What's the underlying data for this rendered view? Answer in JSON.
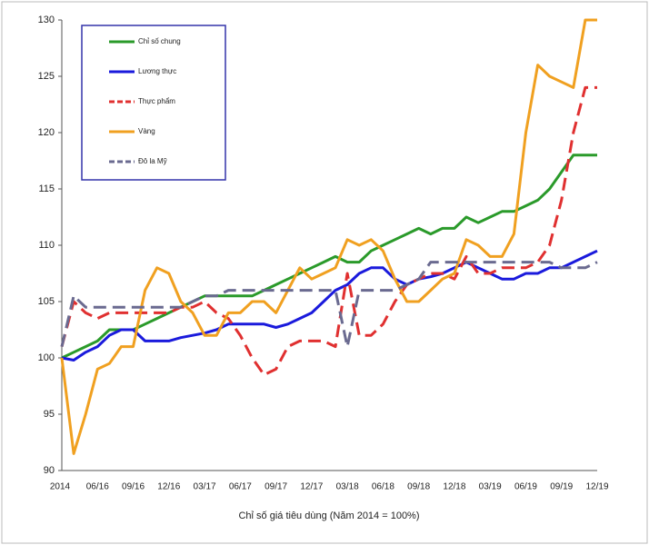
{
  "chart_data": {
    "type": "line",
    "x_label": "Chỉ số giá tiêu dùng (Năm 2014 = 100%)",
    "categories": [
      "2014",
      null,
      null,
      "06/16",
      null,
      null,
      "09/16",
      null,
      null,
      "12/16",
      null,
      null,
      "03/17",
      null,
      null,
      "06/17",
      null,
      null,
      "09/17",
      null,
      null,
      "12/17",
      null,
      null,
      "03/18",
      null,
      null,
      "06/18",
      null,
      null,
      "09/18",
      null,
      null,
      "12/18",
      null,
      null,
      "03/19",
      null,
      null,
      "06/19",
      null,
      null,
      "09/19",
      null,
      null,
      "12/19"
    ],
    "ylim": [
      90,
      130
    ],
    "yticks": [
      90,
      95,
      100,
      105,
      110,
      115,
      120,
      125,
      130
    ],
    "series": [
      {
        "name": "Chỉ số chung",
        "color": "#2a9a2a",
        "dashed": false,
        "values": [
          100,
          100.5,
          101,
          101.5,
          102.5,
          102.5,
          102.5,
          103,
          103.5,
          104,
          104.5,
          105,
          105.5,
          105.5,
          105.5,
          105.5,
          105.5,
          106,
          106.5,
          107,
          107.5,
          108,
          108.5,
          109,
          108.5,
          108.5,
          109.5,
          110,
          110.5,
          111,
          111.5,
          111,
          111.5,
          111.5,
          112.5,
          112,
          112.5,
          113,
          113,
          113.5,
          114,
          115,
          116.5,
          118,
          118,
          118
        ]
      },
      {
        "name": "Lương thực",
        "color": "#1a1adc",
        "dashed": false,
        "values": [
          100,
          99.8,
          100.5,
          101,
          102,
          102.5,
          102.5,
          101.5,
          101.5,
          101.5,
          101.8,
          102,
          102.2,
          102.5,
          103,
          103,
          103,
          103,
          102.7,
          103,
          103.5,
          104,
          105,
          106,
          106.5,
          107.5,
          108,
          108,
          107,
          106.5,
          107,
          107.2,
          107.5,
          108,
          108.5,
          108,
          107.5,
          107,
          107,
          107.5,
          107.5,
          108,
          108,
          108.5,
          109,
          109.5
        ]
      },
      {
        "name": "Thực phẩm",
        "color": "#e03030",
        "dashed": true,
        "values": [
          101,
          105,
          104,
          103.5,
          104,
          104,
          104,
          104,
          104,
          104,
          104.5,
          104.5,
          105,
          104,
          103.5,
          102,
          100,
          98.5,
          99,
          101,
          101.5,
          101.5,
          101.5,
          101,
          107.5,
          102,
          102,
          103,
          105,
          106.5,
          107,
          107.5,
          107.5,
          107,
          109,
          107.5,
          107.5,
          108,
          108,
          108,
          108.5,
          110,
          114,
          120,
          124,
          124
        ]
      },
      {
        "name": "Vàng",
        "color": "#f0a020",
        "dashed": false,
        "values": [
          100,
          91.5,
          95,
          99,
          99.5,
          101,
          101,
          106,
          108,
          107.5,
          105,
          104,
          102,
          102,
          104,
          104,
          105,
          105,
          104,
          106,
          108,
          107,
          107.5,
          108,
          110.5,
          110,
          110.5,
          109.5,
          107,
          105,
          105,
          106,
          107,
          107.5,
          110.5,
          110,
          109,
          109,
          111,
          120,
          126,
          125,
          124.5,
          124,
          130,
          130
        ]
      },
      {
        "name": "Đô la Mỹ",
        "color": "#6a6a90",
        "dashed": true,
        "values": [
          101,
          105.5,
          104.5,
          104.5,
          104.5,
          104.5,
          104.5,
          104.5,
          104.5,
          104.5,
          104.5,
          105,
          105.5,
          105.5,
          106,
          106,
          106,
          106,
          106,
          106,
          106,
          106,
          106,
          106,
          101,
          106,
          106,
          106,
          106,
          106.5,
          107,
          108.5,
          108.5,
          108.5,
          108.5,
          108.5,
          108.5,
          108.5,
          108.5,
          108.5,
          108.5,
          108.5,
          108,
          108,
          108,
          108.5
        ]
      }
    ],
    "legend": "top-left",
    "grid": false
  }
}
